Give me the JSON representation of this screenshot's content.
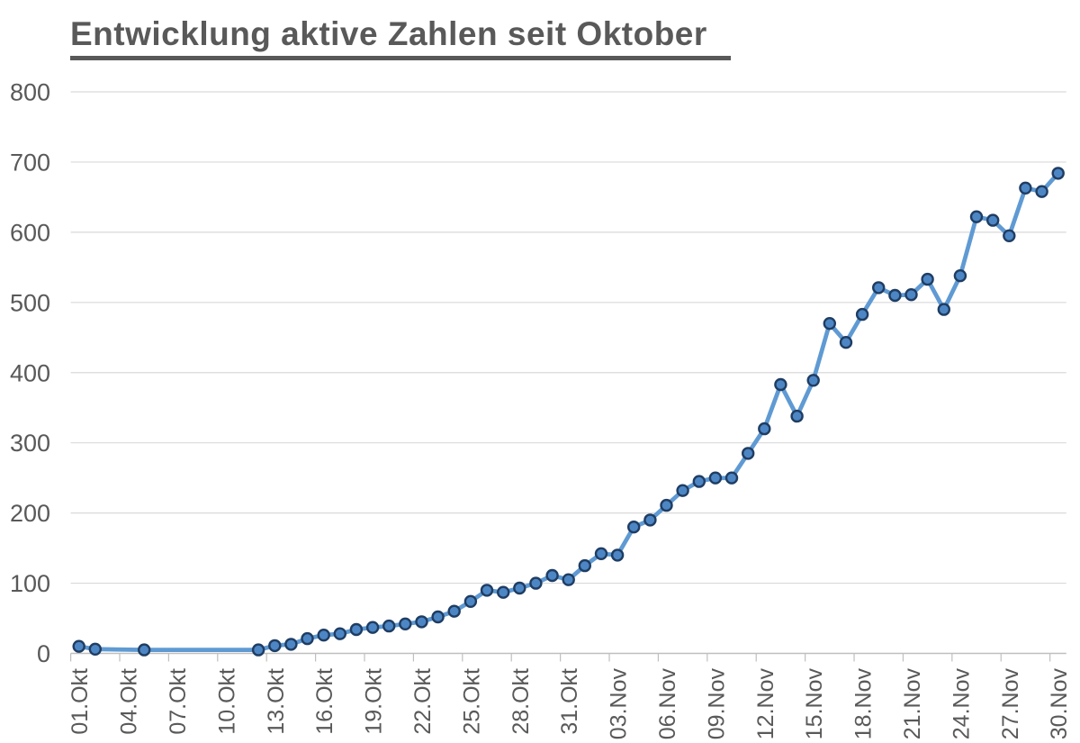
{
  "chart_data": {
    "type": "line",
    "title": "Entwicklung aktive Zahlen seit Oktober",
    "xlabel": "",
    "ylabel": "",
    "ylim": [
      0,
      800
    ],
    "y_ticks": [
      0,
      100,
      200,
      300,
      400,
      500,
      600,
      700,
      800
    ],
    "x_categories_total": 61,
    "x_tick_interval_days": 3,
    "x_tick_labels": [
      "01.Okt",
      "04.Okt",
      "07.Okt",
      "10.Okt",
      "13.Okt",
      "16.Okt",
      "19.Okt",
      "22.Okt",
      "25.Okt",
      "28.Okt",
      "31.Okt",
      "03.Nov",
      "06.Nov",
      "09.Nov",
      "12.Nov",
      "15.Nov",
      "18.Nov",
      "21.Nov",
      "24.Nov",
      "27.Nov",
      "30.Nov"
    ],
    "grid": "horizontal",
    "legend": "none",
    "style": {
      "line_color": "#5F9AD3",
      "marker_fill": "#4D86C4",
      "marker_border": "#1F3D63",
      "grid_color": "#D9D9D9",
      "axis_color": "#BFBFBF",
      "label_color": "#595959",
      "title_color": "#595959"
    },
    "series": [
      {
        "points": [
          {
            "date": "01.Okt",
            "day": 0,
            "value": 10
          },
          {
            "date": "02.Okt",
            "day": 1,
            "value": 6
          },
          {
            "date": "05.Okt",
            "day": 4,
            "value": 5
          },
          {
            "date": "12.Okt",
            "day": 11,
            "value": 5
          },
          {
            "date": "13.Okt",
            "day": 12,
            "value": 11
          },
          {
            "date": "14.Okt",
            "day": 13,
            "value": 13
          },
          {
            "date": "15.Okt",
            "day": 14,
            "value": 21
          },
          {
            "date": "16.Okt",
            "day": 15,
            "value": 26
          },
          {
            "date": "17.Okt",
            "day": 16,
            "value": 28
          },
          {
            "date": "18.Okt",
            "day": 17,
            "value": 34
          },
          {
            "date": "19.Okt",
            "day": 18,
            "value": 37
          },
          {
            "date": "20.Okt",
            "day": 19,
            "value": 39
          },
          {
            "date": "21.Okt",
            "day": 20,
            "value": 42
          },
          {
            "date": "22.Okt",
            "day": 21,
            "value": 45
          },
          {
            "date": "23.Okt",
            "day": 22,
            "value": 52
          },
          {
            "date": "24.Okt",
            "day": 23,
            "value": 60
          },
          {
            "date": "25.Okt",
            "day": 24,
            "value": 74
          },
          {
            "date": "26.Okt",
            "day": 25,
            "value": 90
          },
          {
            "date": "27.Okt",
            "day": 26,
            "value": 87
          },
          {
            "date": "28.Okt",
            "day": 27,
            "value": 93
          },
          {
            "date": "29.Okt",
            "day": 28,
            "value": 100
          },
          {
            "date": "30.Okt",
            "day": 29,
            "value": 111
          },
          {
            "date": "31.Okt",
            "day": 30,
            "value": 105
          },
          {
            "date": "01.Nov",
            "day": 31,
            "value": 125
          },
          {
            "date": "02.Nov",
            "day": 32,
            "value": 142
          },
          {
            "date": "03.Nov",
            "day": 33,
            "value": 140
          },
          {
            "date": "04.Nov",
            "day": 34,
            "value": 180
          },
          {
            "date": "05.Nov",
            "day": 35,
            "value": 190
          },
          {
            "date": "06.Nov",
            "day": 36,
            "value": 211
          },
          {
            "date": "07.Nov",
            "day": 37,
            "value": 232
          },
          {
            "date": "08.Nov",
            "day": 38,
            "value": 245
          },
          {
            "date": "09.Nov",
            "day": 39,
            "value": 250
          },
          {
            "date": "10.Nov",
            "day": 40,
            "value": 250
          },
          {
            "date": "11.Nov",
            "day": 41,
            "value": 285
          },
          {
            "date": "12.Nov",
            "day": 42,
            "value": 320
          },
          {
            "date": "13.Nov",
            "day": 43,
            "value": 383
          },
          {
            "date": "14.Nov",
            "day": 44,
            "value": 338
          },
          {
            "date": "15.Nov",
            "day": 45,
            "value": 389
          },
          {
            "date": "16.Nov",
            "day": 46,
            "value": 470
          },
          {
            "date": "17.Nov",
            "day": 47,
            "value": 443
          },
          {
            "date": "18.Nov",
            "day": 48,
            "value": 483
          },
          {
            "date": "19.Nov",
            "day": 49,
            "value": 521
          },
          {
            "date": "20.Nov",
            "day": 50,
            "value": 510
          },
          {
            "date": "21.Nov",
            "day": 51,
            "value": 511
          },
          {
            "date": "22.Nov",
            "day": 52,
            "value": 533
          },
          {
            "date": "23.Nov",
            "day": 53,
            "value": 490
          },
          {
            "date": "24.Nov",
            "day": 54,
            "value": 538
          },
          {
            "date": "25.Nov",
            "day": 55,
            "value": 622
          },
          {
            "date": "26.Nov",
            "day": 56,
            "value": 617
          },
          {
            "date": "27.Nov",
            "day": 57,
            "value": 595
          },
          {
            "date": "28.Nov",
            "day": 58,
            "value": 663
          },
          {
            "date": "29.Nov",
            "day": 59,
            "value": 658
          },
          {
            "date": "30.Nov",
            "day": 60,
            "value": 684
          }
        ]
      }
    ]
  }
}
